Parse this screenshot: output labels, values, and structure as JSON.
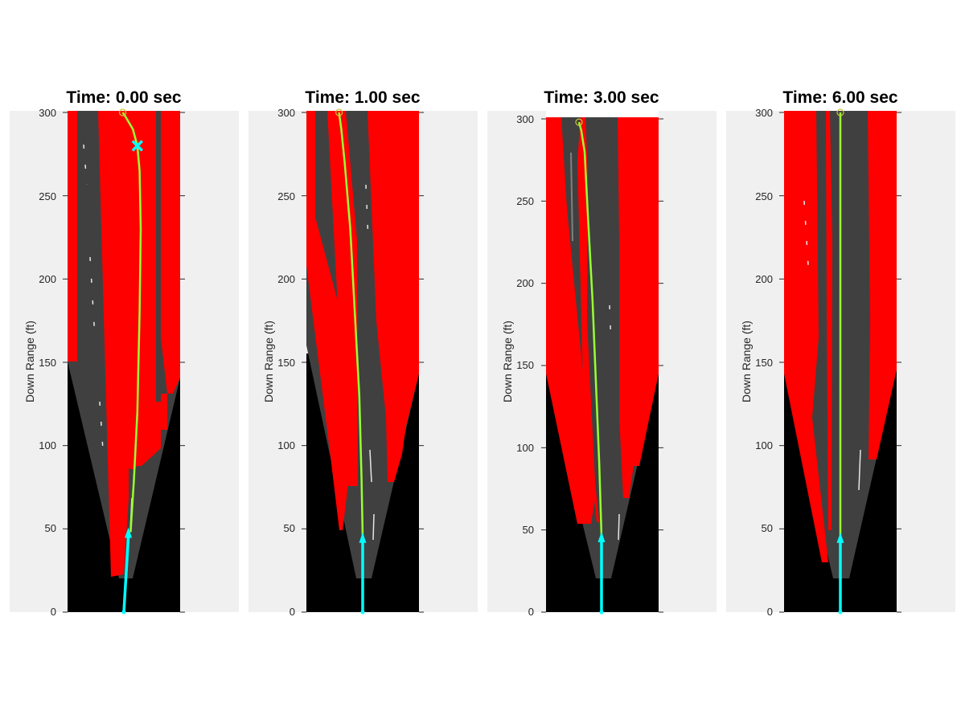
{
  "figure": {
    "background": "#ffffff",
    "panel_background": "#f0f0f0",
    "colors": {
      "unsafe_region": "#ff0000",
      "unknown_region": "#000000",
      "road": "#404040",
      "lane_marking": "#e6e6e6",
      "planned_path": "#99ff33",
      "ego_arrow": "#00ffff"
    }
  },
  "chart_data": [
    {
      "type": "area",
      "title": "Time: 0.00 sec",
      "ylabel": "Down Range (ft)",
      "xlabel": "",
      "ylim": [
        0,
        300
      ],
      "yticks": [
        "0",
        "50",
        "100",
        "150",
        "200",
        "250",
        "300"
      ],
      "grid": false,
      "ego": {
        "x": [
          0,
          4
        ],
        "y": [
          0,
          48
        ]
      },
      "planned_path": {
        "x": [
          6,
          9,
          12,
          14,
          15,
          14,
          12,
          8,
          1,
          -1
        ],
        "y": [
          48,
          80,
          120,
          180,
          230,
          265,
          280,
          290,
          298,
          300
        ]
      },
      "goal_marker": {
        "x": 12,
        "y": 280
      },
      "has_goal_marker": true
    },
    {
      "type": "area",
      "title": "Time: 1.00 sec",
      "ylabel": "Down Range (ft)",
      "xlabel": "",
      "ylim": [
        0,
        300
      ],
      "yticks": [
        "0",
        "50",
        "100",
        "150",
        "200",
        "250",
        "300"
      ],
      "grid": false,
      "ego": {
        "x": [
          0,
          0
        ],
        "y": [
          0,
          45
        ]
      },
      "planned_path": {
        "x": [
          0,
          -1,
          -3,
          -7,
          -11,
          -16,
          -19,
          -21
        ],
        "y": [
          45,
          80,
          130,
          180,
          230,
          270,
          290,
          300
        ]
      },
      "has_goal_marker": false
    },
    {
      "type": "area",
      "title": "Time: 3.00 sec",
      "ylabel": "Down Range (ft)",
      "xlabel": "",
      "ylim": [
        0,
        300
      ],
      "yticks": [
        "0",
        "50",
        "100",
        "150",
        "200",
        "250",
        "300"
      ],
      "grid": false,
      "ego": {
        "x": [
          0,
          0
        ],
        "y": [
          0,
          46
        ]
      },
      "planned_path": {
        "x": [
          0,
          -2,
          -5,
          -8,
          -12,
          -15,
          -18,
          -20
        ],
        "y": [
          46,
          90,
          140,
          190,
          240,
          280,
          293,
          298
        ]
      },
      "has_goal_marker": false
    },
    {
      "type": "area",
      "title": "Time: 6.00 sec",
      "ylabel": "Down Range (ft)",
      "xlabel": "",
      "ylim": [
        0,
        300
      ],
      "yticks": [
        "0",
        "50",
        "100",
        "150",
        "200",
        "250",
        "300"
      ],
      "grid": false,
      "ego": {
        "x": [
          0,
          0
        ],
        "y": [
          0,
          45
        ]
      },
      "planned_path": {
        "x": [
          0,
          0,
          0,
          0,
          0
        ],
        "y": [
          45,
          100,
          180,
          250,
          300
        ]
      },
      "has_goal_marker": false
    }
  ]
}
